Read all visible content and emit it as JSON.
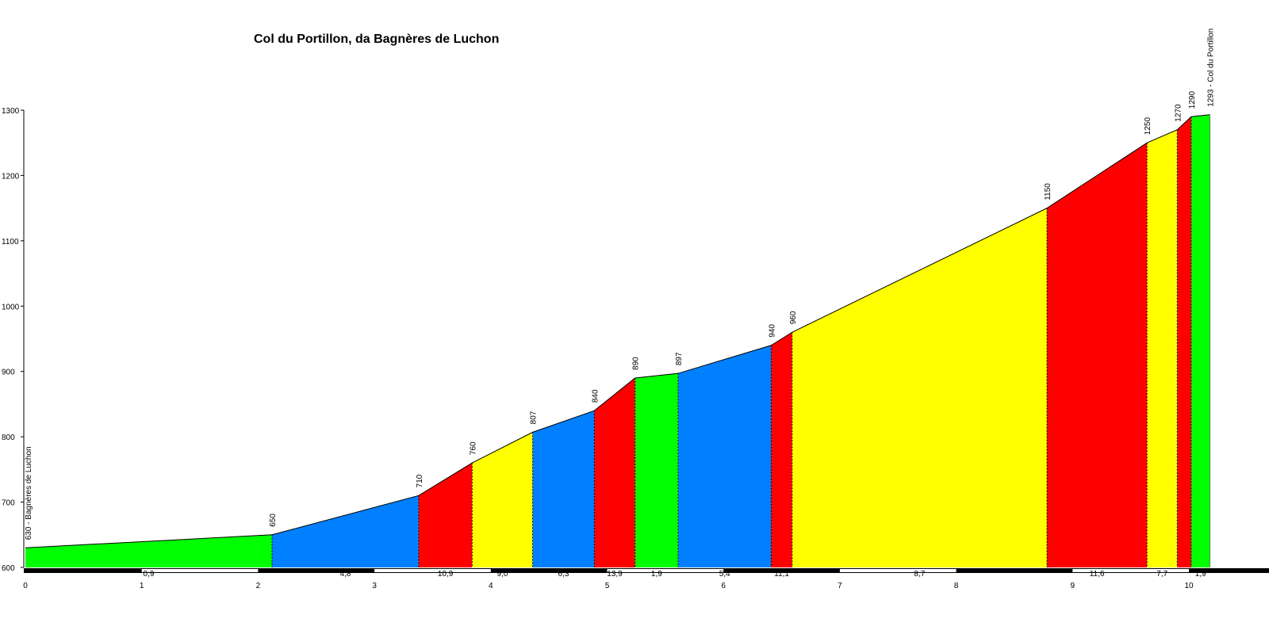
{
  "chart_data": {
    "type": "area",
    "title": "Col du Portillon, da Bagnères de Luchon",
    "xlabel": "",
    "ylabel": "",
    "xlim": [
      0,
      10.7
    ],
    "ylim": [
      600,
      1300
    ],
    "x_ticks": [
      "0",
      "1",
      "2",
      "3",
      "4",
      "5",
      "6",
      "7",
      "8",
      "9",
      "10"
    ],
    "y_ticks": [
      "600",
      "700",
      "800",
      "900",
      "1000",
      "1100",
      "1200",
      "1300"
    ],
    "points": [
      {
        "x": 0.0,
        "y": 630,
        "label": "630 - Bagnères de Luchon"
      },
      {
        "x": 2.12,
        "y": 650,
        "label": "650"
      },
      {
        "x": 3.38,
        "y": 710,
        "label": "710"
      },
      {
        "x": 3.84,
        "y": 760,
        "label": "760"
      },
      {
        "x": 4.36,
        "y": 807,
        "label": "807"
      },
      {
        "x": 4.89,
        "y": 840,
        "label": "840"
      },
      {
        "x": 5.24,
        "y": 890,
        "label": "890"
      },
      {
        "x": 5.61,
        "y": 897,
        "label": "897"
      },
      {
        "x": 6.41,
        "y": 940,
        "label": "940"
      },
      {
        "x": 6.59,
        "y": 960,
        "label": "960"
      },
      {
        "x": 8.78,
        "y": 1150,
        "label": "1150"
      },
      {
        "x": 9.64,
        "y": 1250,
        "label": "1250"
      },
      {
        "x": 9.9,
        "y": 1270,
        "label": "1270"
      },
      {
        "x": 10.02,
        "y": 1290,
        "label": "1290"
      },
      {
        "x": 10.18,
        "y": 1293,
        "label": "1293 - Col du Portillon"
      }
    ],
    "segments": [
      {
        "grade": "0,9",
        "color": "#00ff00"
      },
      {
        "grade": "4,8",
        "color": "#0080ff"
      },
      {
        "grade": "10,9",
        "color": "#ff0000"
      },
      {
        "grade": "9,0",
        "color": "#ffff00"
      },
      {
        "grade": "6,3",
        "color": "#0080ff"
      },
      {
        "grade": "13,9",
        "color": "#ff0000"
      },
      {
        "grade": "1,9",
        "color": "#00ff00"
      },
      {
        "grade": "5,4",
        "color": "#0080ff"
      },
      {
        "grade": "11,1",
        "color": "#ff0000"
      },
      {
        "grade": "8,7",
        "color": "#ffff00"
      },
      {
        "grade": "11,6",
        "color": "#ff0000"
      },
      {
        "grade": "7,7",
        "color": "#ffff00"
      },
      {
        "grade": "",
        "color": "#ff0000"
      },
      {
        "grade": "1,9",
        "color": "#00ff00"
      }
    ]
  }
}
